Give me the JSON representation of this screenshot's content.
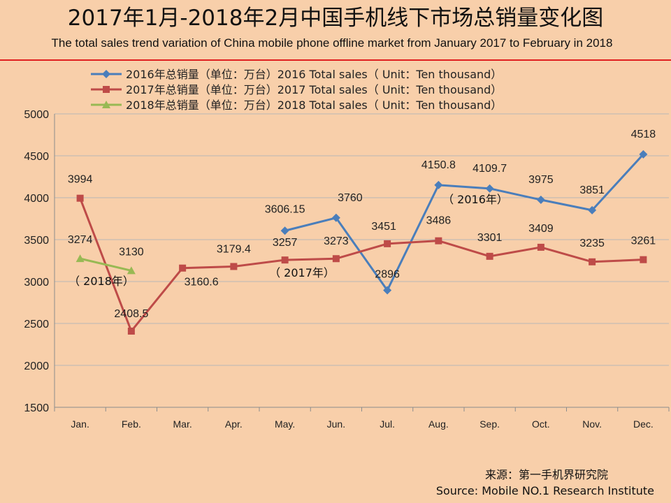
{
  "header": {
    "title_cn": "2017年1月-2018年2月中国手机线下市场总销量变化图",
    "title_en": "The total sales trend variation of China mobile phone offline market from January 2017 to February in 2018",
    "rule_color": "#e02020"
  },
  "source": {
    "cn": "来源：第一手机界研究院",
    "en": "Source: Mobile NO.1 Research Institute"
  },
  "chart_data": {
    "type": "line",
    "categories": [
      "Jan.",
      "Feb.",
      "Mar.",
      "Apr.",
      "May.",
      "Jun.",
      "Jul.",
      "Aug.",
      "Sep.",
      "Oct.",
      "Nov.",
      "Dec."
    ],
    "ylim": [
      1500,
      5000
    ],
    "yticks": [
      "1500",
      "2000",
      "2500",
      "3000",
      "3500",
      "4000",
      "4500",
      "5000"
    ],
    "grid": true,
    "legend_position": "top",
    "series": [
      {
        "name": "2016年总销量（单位：万台）2016 Total sales（ Unit：Ten thousand）",
        "color": "#4a7ebb",
        "marker": "diamond",
        "values": [
          null,
          null,
          null,
          null,
          3606.15,
          3760,
          2896,
          4150.8,
          4109.7,
          3975,
          3851,
          4518
        ],
        "labels": [
          "",
          "",
          "",
          "",
          "3606.15",
          "3760",
          "2896",
          "4150.8",
          "4109.7",
          "3975",
          "3851",
          "4518"
        ]
      },
      {
        "name": "2017年总销量（单位：万台）2017 Total sales（ Unit：Ten thousand）",
        "color": "#be4b48",
        "marker": "square",
        "values": [
          3994,
          2408.5,
          3160.6,
          3179.4,
          3257,
          3273,
          3451,
          3486,
          3301,
          3409,
          3235,
          3261
        ],
        "labels": [
          "3994",
          "2408.5",
          "3160.6",
          "3179.4",
          "3257",
          "3273",
          "3451",
          "3486",
          "3301",
          "3409",
          "3235",
          "3261"
        ]
      },
      {
        "name": "2018年总销量（单位：万台）2018 Total sales（ Unit：Ten thousand）",
        "color": "#98b954",
        "marker": "triangle",
        "values": [
          3274,
          3130,
          null,
          null,
          null,
          null,
          null,
          null,
          null,
          null,
          null,
          null
        ],
        "labels": [
          "3274",
          "3130",
          "",
          "",
          "",
          "",
          "",
          "",
          "",
          "",
          "",
          ""
        ]
      }
    ],
    "annotations": [
      "（ 2018年）",
      "（ 2017年）",
      "（ 2016年）"
    ]
  }
}
